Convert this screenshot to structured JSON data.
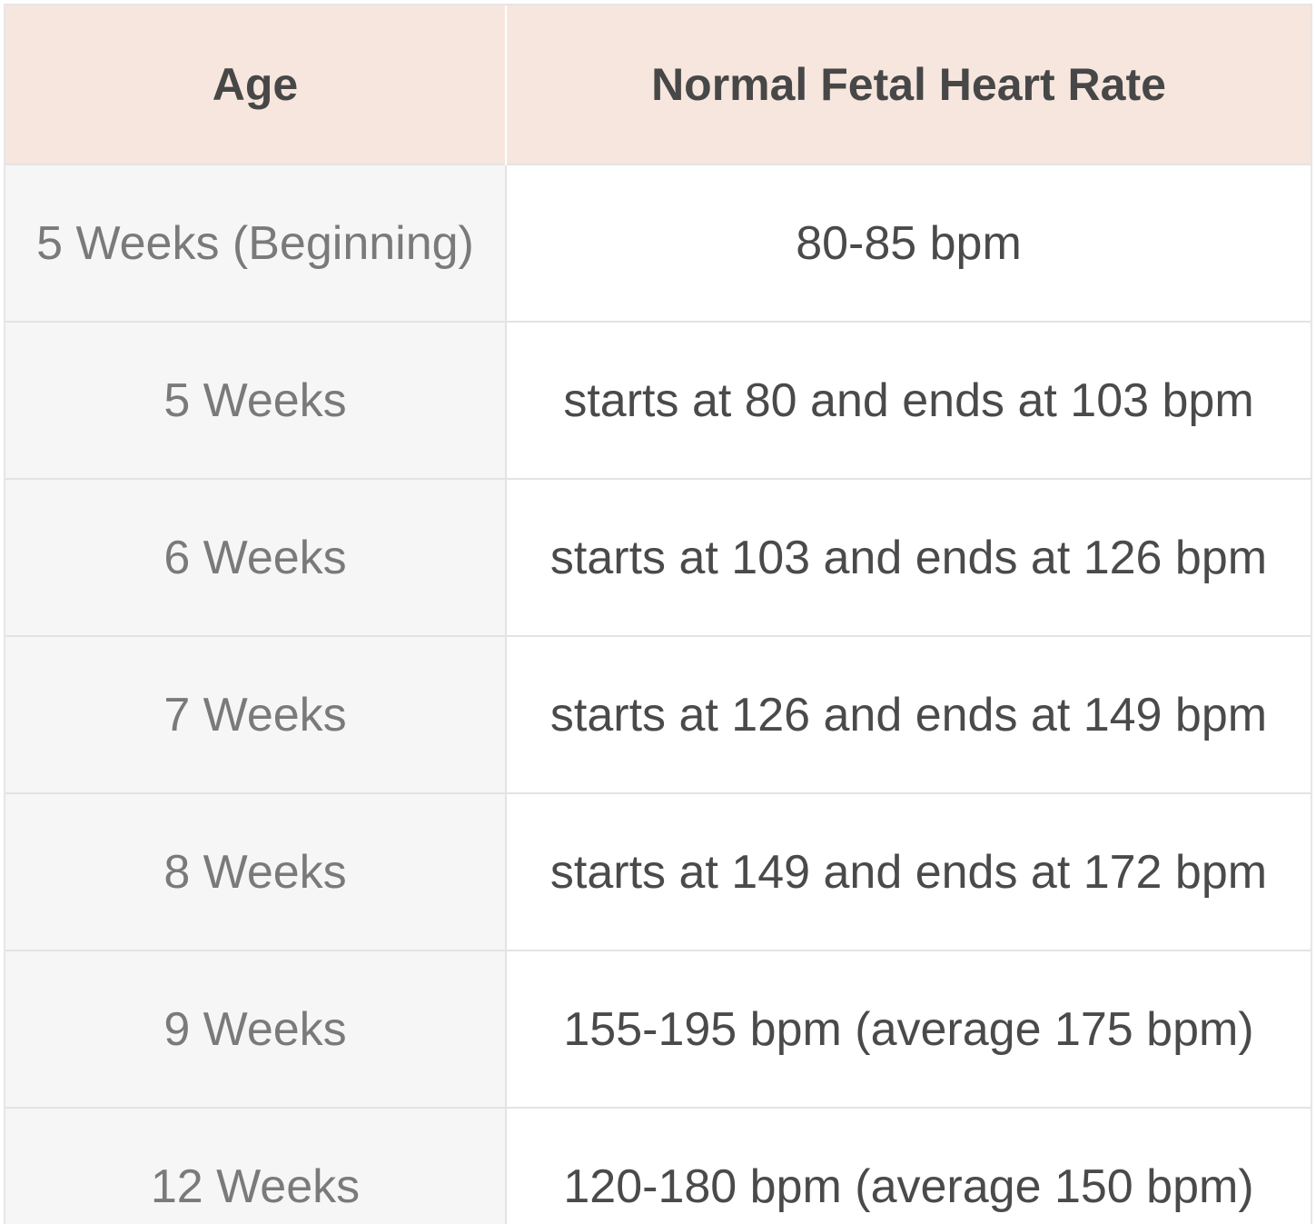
{
  "table": {
    "headers": [
      "Age",
      "Normal Fetal Heart Rate"
    ],
    "rows": [
      [
        "5 Weeks (Beginning)",
        "80-85 bpm"
      ],
      [
        "5 Weeks",
        "starts at 80 and ends at 103 bpm"
      ],
      [
        "6 Weeks",
        "starts at 103 and ends at 126 bpm"
      ],
      [
        "7 Weeks",
        "starts at 126 and ends at 149 bpm"
      ],
      [
        "8 Weeks",
        "starts at 149 and ends at 172 bpm"
      ],
      [
        "9 Weeks",
        "155-195 bpm (average 175 bpm)"
      ],
      [
        "12 Weeks",
        "120-180 bpm (average 150 bpm)"
      ]
    ]
  },
  "colors": {
    "header_background": "#f6e6de",
    "header_text": "#474747",
    "age_column_background": "#f6f6f6",
    "age_text": "#7a7a7a",
    "rate_text": "#4a4a4a",
    "grid_lines": "#e3e3e3"
  }
}
